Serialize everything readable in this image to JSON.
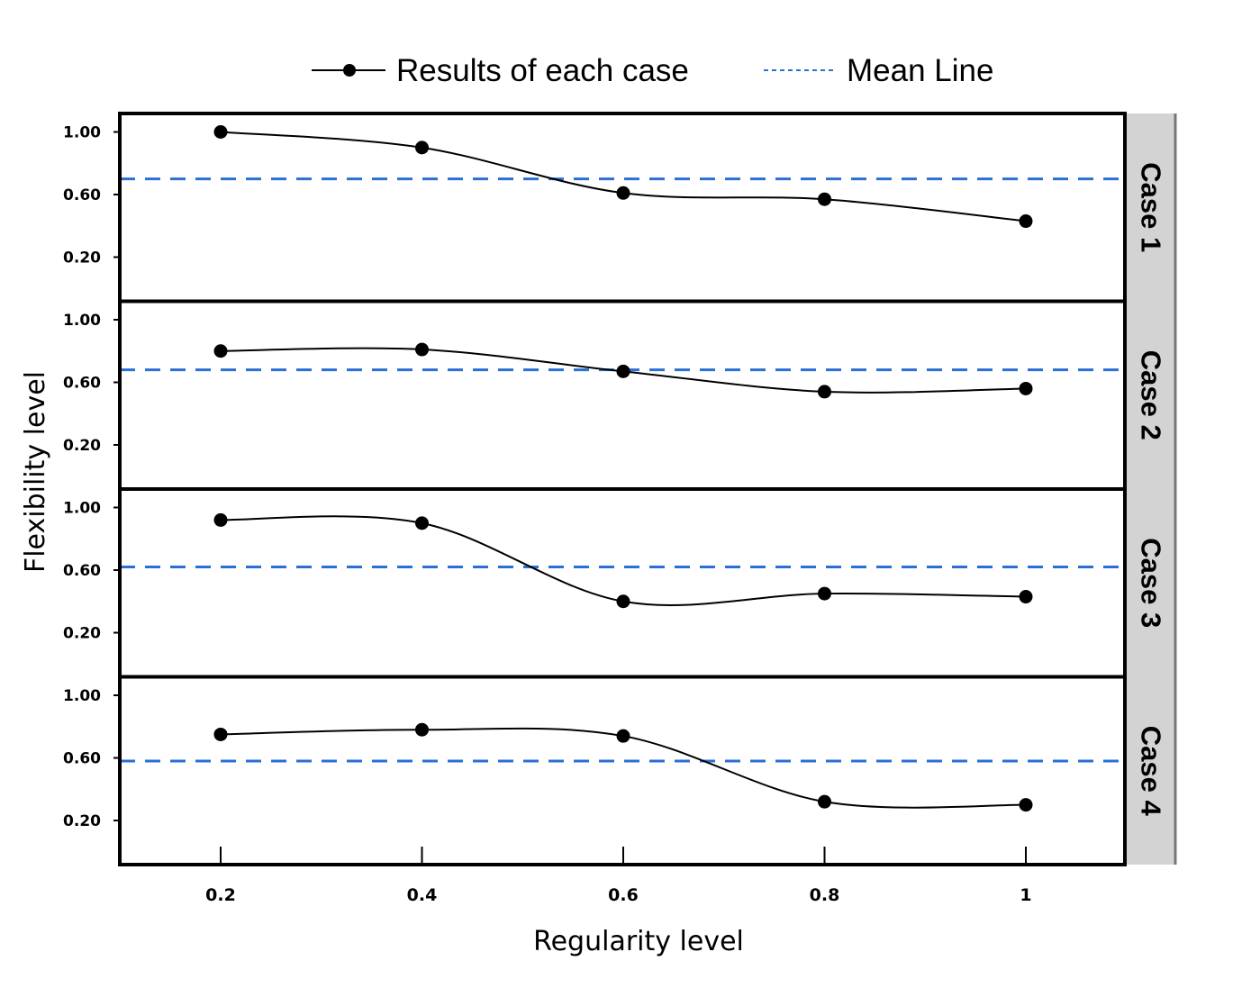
{
  "chart_data": {
    "type": "line",
    "xlabel": "Regularity level",
    "ylabel": "Flexibility level",
    "x": [
      0.2,
      0.4,
      0.6,
      0.8,
      1
    ],
    "x_tick_labels": [
      "0.2",
      "0.4",
      "0.6",
      "0.8",
      "1"
    ],
    "y_tick_values": [
      0.2,
      0.6,
      1.0
    ],
    "y_tick_labels": [
      "0.20",
      "0.60",
      "1.00"
    ],
    "legend": {
      "placement": "top",
      "series_label": "Results of each case",
      "mean_label": "Mean Line"
    },
    "panels": [
      {
        "strip": "Case 1",
        "values": [
          1.0,
          0.9,
          0.61,
          0.57,
          0.43
        ],
        "mean": 0.7
      },
      {
        "strip": "Case 2",
        "values": [
          0.8,
          0.81,
          0.67,
          0.54,
          0.56
        ],
        "mean": 0.68
      },
      {
        "strip": "Case 3",
        "values": [
          0.92,
          0.9,
          0.4,
          0.45,
          0.43
        ],
        "mean": 0.62
      },
      {
        "strip": "Case 4",
        "values": [
          0.75,
          0.78,
          0.74,
          0.32,
          0.3
        ],
        "mean": 0.58
      }
    ],
    "colors": {
      "series": "#000000",
      "mean": "#2a6fd6",
      "strip_bg": "#d3d3d3"
    }
  }
}
